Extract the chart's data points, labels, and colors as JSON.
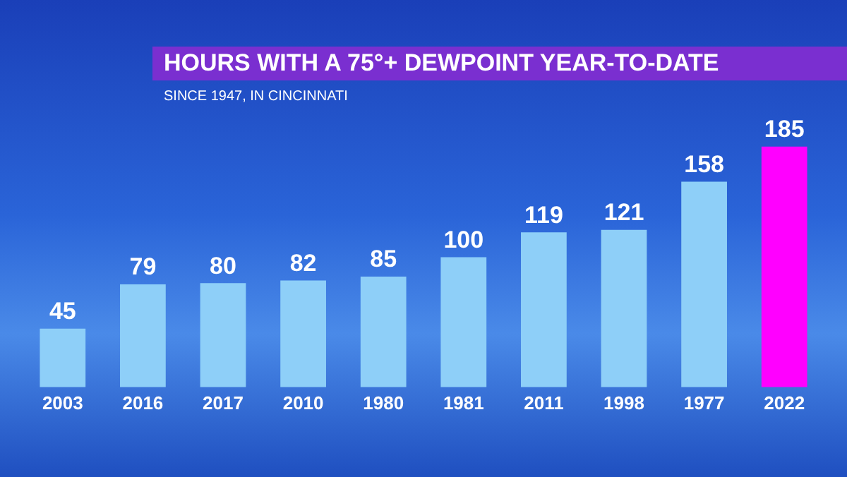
{
  "chart_data": {
    "type": "bar",
    "title": "HOURS WITH A 75°+ DEWPOINT YEAR-TO-DATE",
    "subtitle": "SINCE 1947, IN CINCINNATI",
    "categories": [
      "2003",
      "2016",
      "2017",
      "2010",
      "1980",
      "1981",
      "2011",
      "1998",
      "1977",
      "2022"
    ],
    "values": [
      45,
      79,
      80,
      82,
      85,
      100,
      119,
      121,
      158,
      185
    ],
    "colors": [
      "#8ecff8",
      "#8ecff8",
      "#8ecff8",
      "#8ecff8",
      "#8ecff8",
      "#8ecff8",
      "#8ecff8",
      "#8ecff8",
      "#8ecff8",
      "#ff00ff"
    ],
    "data_labels": true,
    "grid": false,
    "legend": false,
    "tick_labels": "x"
  }
}
